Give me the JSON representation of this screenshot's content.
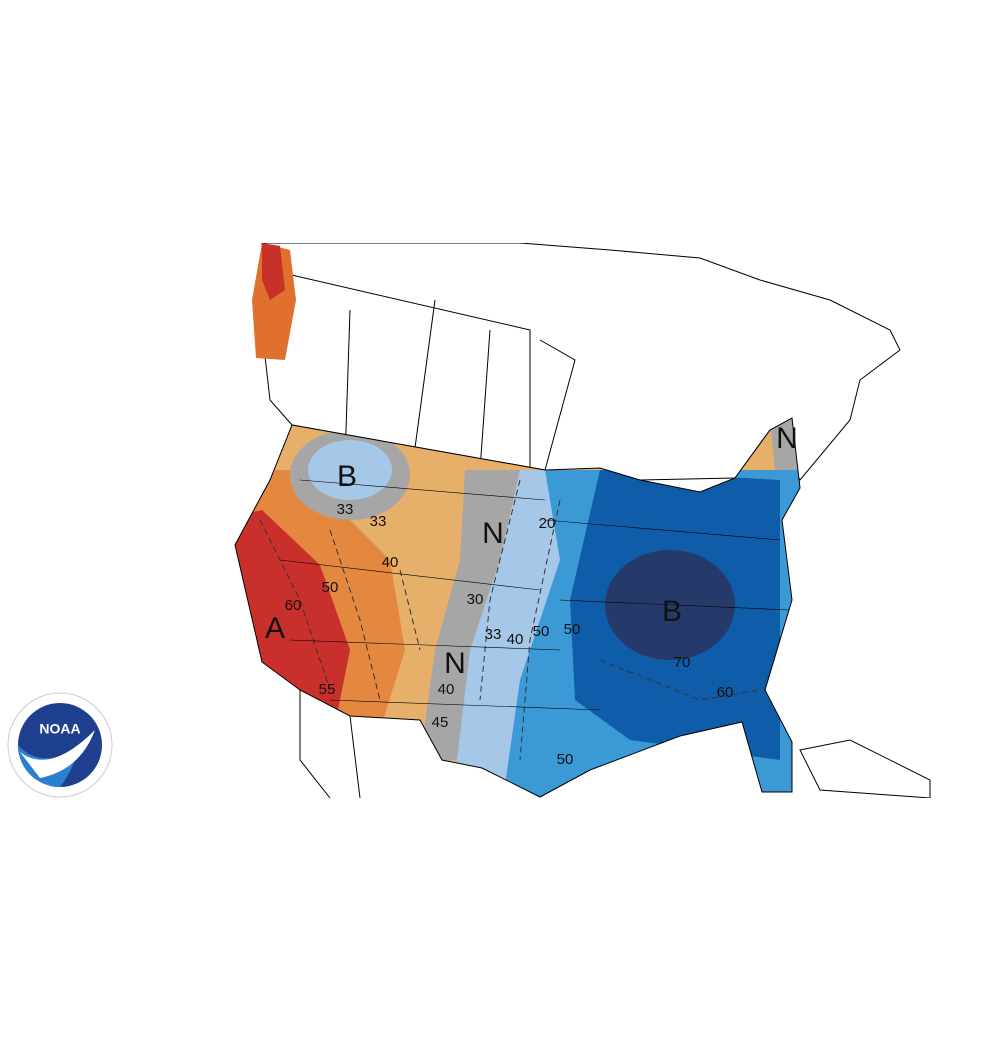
{
  "map": {
    "labels": [
      "A",
      "B",
      "N",
      "N",
      "B",
      "N",
      "33",
      "33",
      "40",
      "50",
      "60",
      "55",
      "20",
      "30",
      "33",
      "40",
      "50",
      "50",
      "70",
      "60",
      "40",
      "45",
      "50"
    ],
    "logo": {
      "text": "NOAA"
    }
  }
}
